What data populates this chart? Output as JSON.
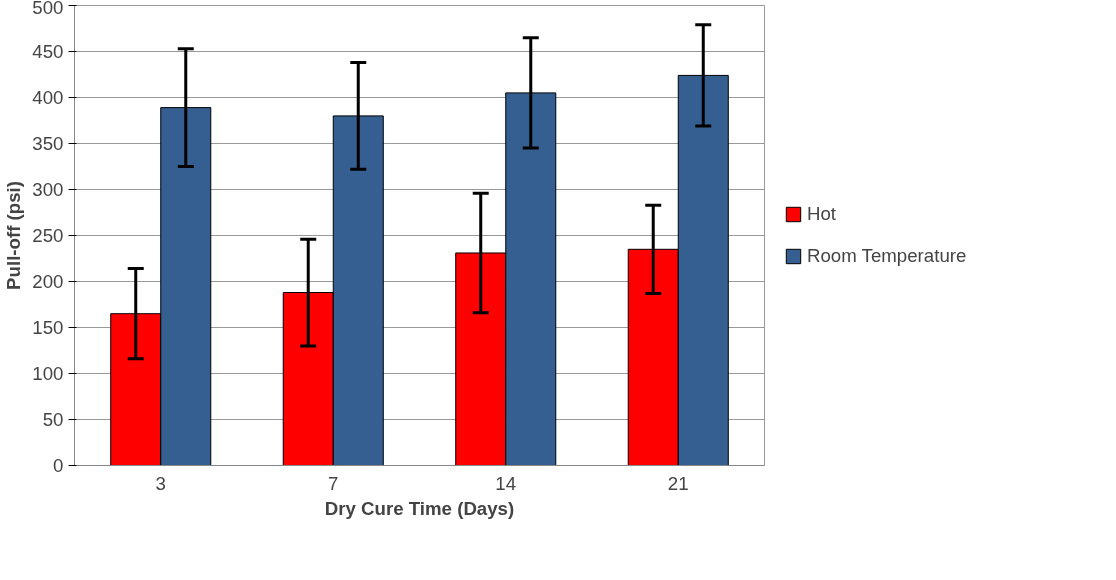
{
  "chart_data": {
    "type": "bar",
    "xlabel": "Dry Cure Time (Days)",
    "ylabel": "Pull-off (psi)",
    "categories": [
      "3",
      "7",
      "14",
      "21"
    ],
    "series": [
      {
        "name": "Hot",
        "color": "#ff0000",
        "values": [
          165,
          188,
          231,
          235
        ],
        "errors": [
          49,
          58,
          65,
          48
        ]
      },
      {
        "name": "Room Temperature",
        "color": "#365f91",
        "values": [
          389,
          380,
          405,
          424
        ],
        "errors": [
          64,
          58,
          60,
          55
        ]
      }
    ],
    "ylim": [
      0,
      500
    ],
    "yticks": [
      0,
      50,
      100,
      150,
      200,
      250,
      300,
      350,
      400,
      450,
      500
    ],
    "grid": "y",
    "legend": "right"
  }
}
